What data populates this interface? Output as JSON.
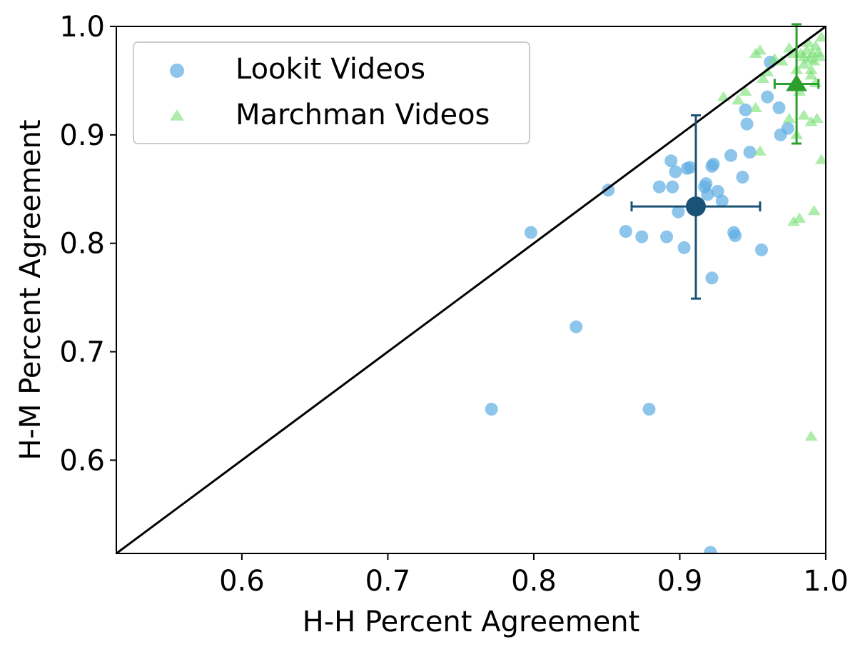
{
  "chart_data": {
    "type": "scatter",
    "xlabel": "H-H Percent Agreement",
    "ylabel": "H-M Percent Agreement",
    "xlim": [
      0.514,
      1.0
    ],
    "ylim": [
      0.514,
      1.0
    ],
    "xticks": [
      "0.6",
      "0.7",
      "0.8",
      "0.9",
      "1.0"
    ],
    "yticks": [
      "0.6",
      "0.7",
      "0.8",
      "0.9",
      "1.0"
    ],
    "xtick_values": [
      0.6,
      0.7,
      0.8,
      0.9,
      1.0
    ],
    "ytick_values": [
      0.6,
      0.7,
      0.8,
      0.9,
      1.0
    ],
    "grid": false,
    "legend_position": "top-left",
    "reference_line": "y = x",
    "series": [
      {
        "name": "Lookit Videos",
        "marker": "circle",
        "color": "#5dade2",
        "points": [
          [
            0.771,
            0.647
          ],
          [
            0.798,
            0.81
          ],
          [
            0.829,
            0.723
          ],
          [
            0.851,
            0.849
          ],
          [
            0.863,
            0.811
          ],
          [
            0.874,
            0.806
          ],
          [
            0.879,
            0.647
          ],
          [
            0.886,
            0.852
          ],
          [
            0.891,
            0.806
          ],
          [
            0.894,
            0.876
          ],
          [
            0.895,
            0.852
          ],
          [
            0.897,
            0.866
          ],
          [
            0.899,
            0.829
          ],
          [
            0.903,
            0.796
          ],
          [
            0.905,
            0.869
          ],
          [
            0.907,
            0.87
          ],
          [
            0.917,
            0.852
          ],
          [
            0.918,
            0.855
          ],
          [
            0.919,
            0.845
          ],
          [
            0.921,
            0.515
          ],
          [
            0.922,
            0.768
          ],
          [
            0.922,
            0.871
          ],
          [
            0.923,
            0.873
          ],
          [
            0.926,
            0.848
          ],
          [
            0.929,
            0.839
          ],
          [
            0.935,
            0.881
          ],
          [
            0.937,
            0.81
          ],
          [
            0.938,
            0.807
          ],
          [
            0.943,
            0.861
          ],
          [
            0.945,
            0.923
          ],
          [
            0.946,
            0.91
          ],
          [
            0.948,
            0.884
          ],
          [
            0.956,
            0.794
          ],
          [
            0.96,
            0.935
          ],
          [
            0.962,
            0.967
          ],
          [
            0.968,
            0.925
          ],
          [
            0.969,
            0.9
          ],
          [
            0.974,
            0.906
          ]
        ],
        "mean": [
          0.911,
          0.834
        ],
        "mean_color": "#1a5276",
        "x_error": [
          0.867,
          0.955
        ],
        "y_error": [
          0.749,
          0.918
        ]
      },
      {
        "name": "Marchman Videos",
        "marker": "triangle",
        "color": "#76e073",
        "points": [
          [
            0.952,
            0.975
          ],
          [
            0.955,
            0.978
          ],
          [
            0.965,
            0.97
          ],
          [
            0.97,
            0.968
          ],
          [
            0.975,
            0.98
          ],
          [
            0.978,
            0.975
          ],
          [
            0.98,
            0.96
          ],
          [
            0.983,
            0.975
          ],
          [
            0.985,
            0.972
          ],
          [
            0.987,
            0.978
          ],
          [
            0.989,
            0.97
          ],
          [
            0.991,
            0.975
          ],
          [
            0.993,
            0.982
          ],
          [
            0.995,
            0.976
          ],
          [
            0.997,
            0.99
          ],
          [
            0.988,
            0.985
          ],
          [
            0.992,
            0.968
          ],
          [
            0.996,
            0.972
          ],
          [
            0.985,
            0.965
          ],
          [
            0.99,
            0.96
          ],
          [
            0.96,
            0.958
          ],
          [
            0.957,
            0.952
          ],
          [
            0.945,
            0.94
          ],
          [
            0.94,
            0.932
          ],
          [
            0.93,
            0.935
          ],
          [
            0.952,
            0.925
          ],
          [
            0.978,
            0.945
          ],
          [
            0.982,
            0.94
          ],
          [
            0.99,
            0.955
          ],
          [
            0.993,
            0.948
          ],
          [
            0.985,
            0.918
          ],
          [
            0.99,
            0.912
          ],
          [
            0.994,
            0.915
          ],
          [
            0.975,
            0.915
          ],
          [
            0.98,
            0.9
          ],
          [
            0.955,
            0.885
          ],
          [
            0.997,
            0.877
          ],
          [
            0.978,
            0.82
          ],
          [
            0.982,
            0.823
          ],
          [
            0.992,
            0.83
          ],
          [
            0.99,
            0.622
          ]
        ],
        "mean": [
          0.98,
          0.947
        ],
        "mean_color": "#2ca02c",
        "x_error": [
          0.965,
          0.995
        ],
        "y_error": [
          0.892,
          1.002
        ]
      }
    ]
  }
}
